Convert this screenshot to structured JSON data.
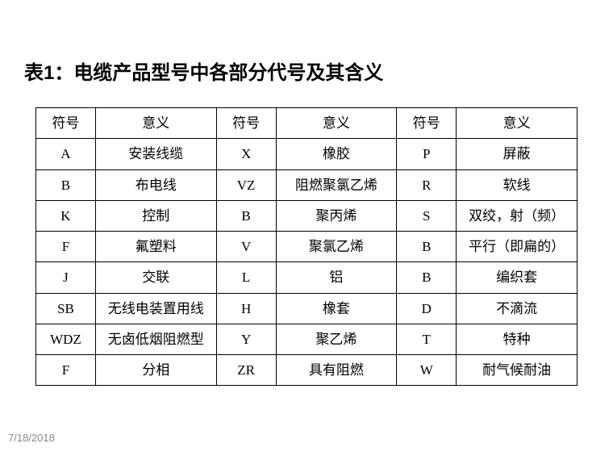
{
  "title": "表1：电缆产品型号中各部分代号及其含义",
  "headers": {
    "sym1": "符号",
    "mean1": "意义",
    "sym2": "符号",
    "mean2": "意义",
    "sym3": "符号",
    "mean3": "意义"
  },
  "rows": [
    {
      "s1": "A",
      "m1": "安装线缆",
      "s2": "X",
      "m2": "橡胶",
      "s3": "P",
      "m3": "屏蔽"
    },
    {
      "s1": "B",
      "m1": "布电线",
      "s2": "VZ",
      "m2": "阻燃聚氯乙烯",
      "s3": "R",
      "m3": "软线"
    },
    {
      "s1": "K",
      "m1": "控制",
      "s2": "B",
      "m2": "聚丙烯",
      "s3": "S",
      "m3": "双绞，射（频）"
    },
    {
      "s1": "F",
      "m1": "氟塑料",
      "s2": "V",
      "m2": "聚氯乙烯",
      "s3": "B",
      "m3": "平行（即扁的）"
    },
    {
      "s1": "J",
      "m1": "交联",
      "s2": "L",
      "m2": "铝",
      "s3": "B",
      "m3": "编织套"
    },
    {
      "s1": "SB",
      "m1": "无线电装置用线",
      "s2": "H",
      "m2": "橡套",
      "s3": "D",
      "m3": "不滴流"
    },
    {
      "s1": "WDZ",
      "m1": "无卤低烟阻燃型",
      "s2": "Y",
      "m2": "聚乙烯",
      "s3": "T",
      "m3": "特种"
    },
    {
      "s1": "F",
      "m1": "分相",
      "s2": "ZR",
      "m2": "具有阻燃",
      "s3": "W",
      "m3": "耐气候耐油"
    }
  ],
  "footer_date": "7/18/2018",
  "style": {
    "type": "table",
    "columns": [
      {
        "key": "s1",
        "width_pct": 11,
        "header": "符号"
      },
      {
        "key": "m1",
        "width_pct": 22.3,
        "header": "意义"
      },
      {
        "key": "s2",
        "width_pct": 11,
        "header": "符号"
      },
      {
        "key": "m2",
        "width_pct": 22.3,
        "header": "意义"
      },
      {
        "key": "s3",
        "width_pct": 11,
        "header": "符号"
      },
      {
        "key": "m3",
        "width_pct": 22.3,
        "header": "意义"
      }
    ],
    "border_color": "#000000",
    "border_width": 1.5,
    "background_color": "#ffffff",
    "cell_text_align": "center",
    "title_fontsize_pt": 24,
    "title_fontweight": "bold",
    "title_font_family": "SimHei",
    "cell_fontsize_pt": 17,
    "cell_font_family": "SimSun",
    "footer_color": "#888888",
    "footer_fontsize_pt": 13
  }
}
